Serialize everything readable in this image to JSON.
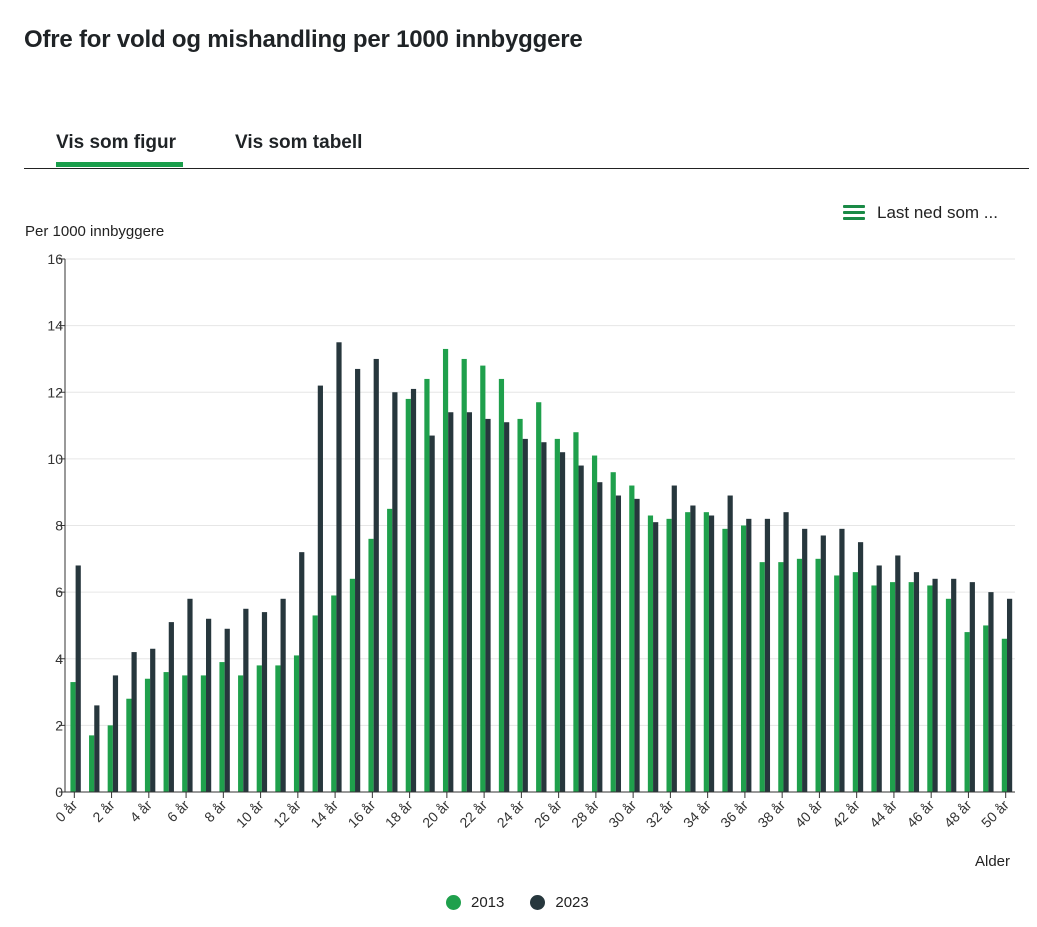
{
  "title": "Ofre for vold og mishandling per 1000 innbyggere",
  "tabs": {
    "figure": "Vis som figur",
    "table": "Vis som tabell"
  },
  "download": {
    "label": "Last ned som ...",
    "icon": "menu-icon"
  },
  "colors": {
    "series_2013": "#1fa04c",
    "series_2023": "#27373d",
    "accent": "#1a9e4b"
  },
  "chart_data": {
    "type": "bar",
    "title": "Ofre for vold og mishandling per 1000 innbyggere",
    "ylabel": "Per 1000 innbyggere",
    "xlabel": "Alder",
    "ylim": [
      0,
      16
    ],
    "yticks": [
      "0",
      "2",
      "4",
      "6",
      "8",
      "10",
      "12",
      "14",
      "16"
    ],
    "grid": true,
    "legend": "bottom",
    "categories": [
      "0 år",
      "1 år",
      "2 år",
      "3 år",
      "4 år",
      "5 år",
      "6 år",
      "7 år",
      "8 år",
      "9 år",
      "10 år",
      "11 år",
      "12 år",
      "13 år",
      "14 år",
      "15 år",
      "16 år",
      "17 år",
      "18 år",
      "19 år",
      "20 år",
      "21 år",
      "22 år",
      "23 år",
      "24 år",
      "25 år",
      "26 år",
      "27 år",
      "28 år",
      "29 år",
      "30 år",
      "31 år",
      "32 år",
      "33 år",
      "34 år",
      "35 år",
      "36 år",
      "37 år",
      "38 år",
      "39 år",
      "40 år",
      "41 år",
      "42 år",
      "43 år",
      "44 år",
      "45 år",
      "46 år",
      "47 år",
      "48 år",
      "49 år",
      "50 år"
    ],
    "tick_labels": [
      "0 år",
      "2 år",
      "4 år",
      "6 år",
      "8 år",
      "10 år",
      "12 år",
      "14 år",
      "16 år",
      "18 år",
      "20 år",
      "22 år",
      "24 år",
      "26 år",
      "28 år",
      "30 år",
      "32 år",
      "34 år",
      "36 år",
      "38 år",
      "40 år",
      "42 år",
      "44 år",
      "46 år",
      "48 år",
      "50 år"
    ],
    "series": [
      {
        "name": "2013",
        "values": [
          3.3,
          1.7,
          2.0,
          2.8,
          3.4,
          3.6,
          3.5,
          3.5,
          3.9,
          3.5,
          3.8,
          3.8,
          4.1,
          5.3,
          5.9,
          6.4,
          7.6,
          8.5,
          11.8,
          12.4,
          13.3,
          13.0,
          12.8,
          12.4,
          11.2,
          11.7,
          10.6,
          10.8,
          10.1,
          9.6,
          9.2,
          8.3,
          8.2,
          8.4,
          8.4,
          7.9,
          8.0,
          6.9,
          6.9,
          7.0,
          7.0,
          6.5,
          6.6,
          6.2,
          6.3,
          6.3,
          6.2,
          5.8,
          4.8,
          5.0,
          4.6
        ]
      },
      {
        "name": "2023",
        "values": [
          6.8,
          2.6,
          3.5,
          4.2,
          4.3,
          5.1,
          5.8,
          5.2,
          4.9,
          5.5,
          5.4,
          5.8,
          7.2,
          12.2,
          13.5,
          12.7,
          13.0,
          12.0,
          12.1,
          10.7,
          11.4,
          11.4,
          11.2,
          11.1,
          10.6,
          10.5,
          10.2,
          9.8,
          9.3,
          8.9,
          8.8,
          8.1,
          9.2,
          8.6,
          8.3,
          8.9,
          8.2,
          8.2,
          8.4,
          7.9,
          7.7,
          7.9,
          7.5,
          6.8,
          7.1,
          6.6,
          6.4,
          6.4,
          6.3,
          6.0,
          5.8
        ]
      }
    ]
  }
}
